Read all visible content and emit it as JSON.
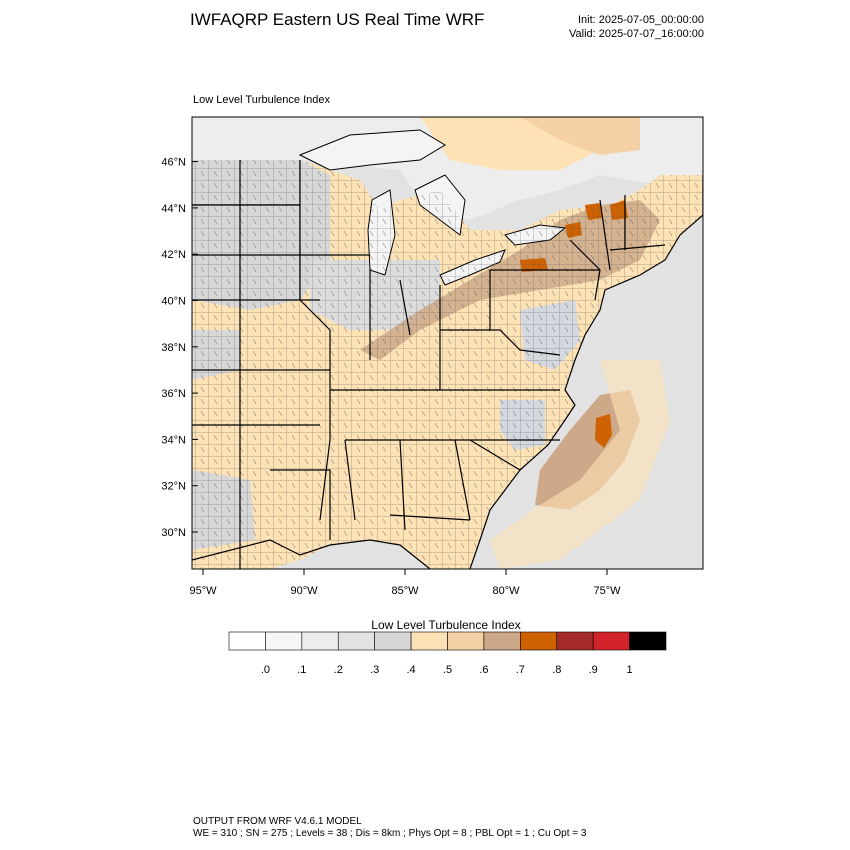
{
  "header": {
    "title": "IWFAQRP Eastern US Real Time WRF",
    "init": "Init: 2025-07-05_00:00:00",
    "valid": "Valid: 2025-07-07_16:00:00"
  },
  "map": {
    "label": "Low Level Turbulence Index",
    "lat_ticks": [
      "46°N",
      "44°N",
      "42°N",
      "40°N",
      "38°N",
      "36°N",
      "34°N",
      "32°N",
      "30°N"
    ],
    "lon_ticks": [
      "95°W",
      "90°W",
      "85°W",
      "80°W",
      "75°W"
    ],
    "lat_values": [
      46,
      44,
      42,
      40,
      38,
      36,
      34,
      32,
      30
    ],
    "lon_values": [
      -95,
      -90,
      -85,
      -80,
      -75
    ],
    "field": "Low Level Turbulence Index",
    "colors": {
      "water": "#e2e2e2",
      "lake": "#f4f4f4",
      "land_low": "#fde2b6",
      "land_mid": "#d7d7d7",
      "tan": "#cda98a",
      "orange": "#cf6200",
      "border": "#000000"
    }
  },
  "colorbar": {
    "title": "Low Level Turbulence Index",
    "tick_labels": [
      ".0",
      ".1",
      ".2",
      ".3",
      ".4",
      ".5",
      ".6",
      ".7",
      ".8",
      ".9",
      "1"
    ],
    "bins": [
      {
        "color": "#ffffff"
      },
      {
        "color": "#f6f6f6"
      },
      {
        "color": "#ededed"
      },
      {
        "color": "#e2e2e2"
      },
      {
        "color": "#d6d6d6"
      },
      {
        "color": "#fde2b6"
      },
      {
        "color": "#f4d0a4"
      },
      {
        "color": "#cda98a"
      },
      {
        "color": "#cf6200"
      },
      {
        "color": "#a52a2a"
      },
      {
        "color": "#d2232a"
      },
      {
        "color": "#000000"
      }
    ]
  },
  "footer": {
    "line1": "OUTPUT FROM WRF V4.6.1 MODEL",
    "line2": "WE = 310 ; SN = 275 ; Levels = 38 ; Dis = 8km ; Phys Opt = 8 ; PBL Opt = 1 ; Cu Opt = 3"
  }
}
